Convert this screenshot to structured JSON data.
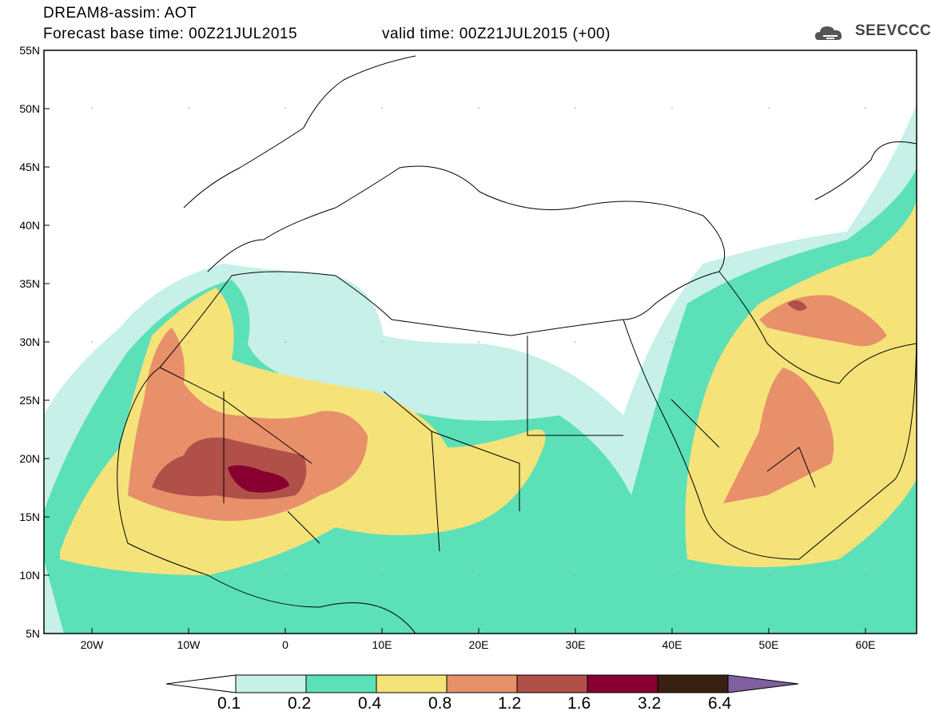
{
  "header": {
    "title_line1": "DREAM8-assim: AOT",
    "title_line2": "Forecast base time: 00Z21JUL2015",
    "valid_time": "valid time: 00Z21JUL2015 (+00)",
    "logo_text": "SEEVCCC"
  },
  "map": {
    "lat_labels": [
      "55N",
      "50N",
      "45N",
      "40N",
      "35N",
      "30N",
      "25N",
      "20N",
      "15N",
      "10N",
      "5N"
    ],
    "lon_labels": [
      "20W",
      "10W",
      "0",
      "10E",
      "20E",
      "30E",
      "40E",
      "50E",
      "60E"
    ],
    "lon_range": [
      -25,
      65
    ],
    "lat_range": [
      5,
      55
    ]
  },
  "colorbar": {
    "thresholds": [
      "0.1",
      "0.2",
      "0.4",
      "0.8",
      "1.2",
      "1.6",
      "3.2",
      "6.4"
    ],
    "colors": [
      "#ffffff",
      "#c6f0e8",
      "#5ce0b8",
      "#f5e37a",
      "#e8906a",
      "#b05048",
      "#880030",
      "#3a2010",
      "#8060a0"
    ]
  },
  "icons": {
    "logo": "cloud-logo-icon"
  }
}
